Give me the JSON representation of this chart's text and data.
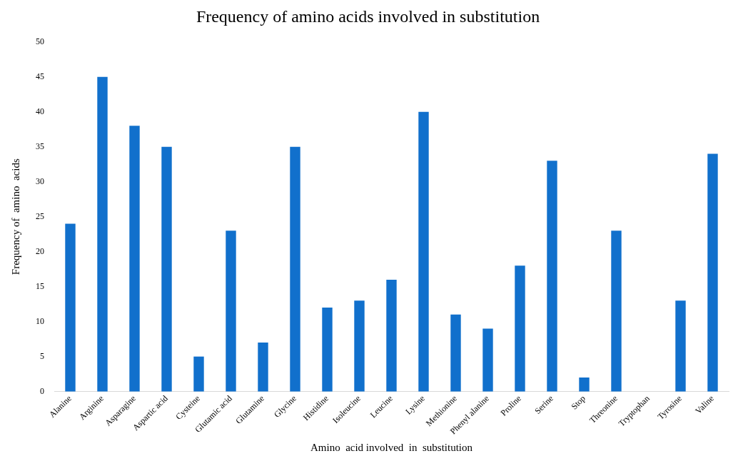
{
  "chart_data": {
    "type": "bar",
    "title": "Frequency of amino acids involved in substitution",
    "xlabel": "Amino  acid involved  in  substitution",
    "ylabel": "Frequency of  amino  acids",
    "categories": [
      "Alanine",
      "Arginine",
      "Asparagine",
      "Aspartic acid",
      "Cysteine",
      "Glutamic acid",
      "Glutamine",
      "Glycine",
      "Histidine",
      "Isoleucine",
      "Leucine",
      "Lysine",
      "Methionine",
      "Phenyl alanine",
      "Proline",
      "Serine",
      "Stop",
      "Threonine",
      "Tryptophan",
      "Tyrosine",
      "Valine"
    ],
    "values": [
      24,
      45,
      38,
      35,
      5,
      23,
      7,
      35,
      12,
      13,
      16,
      40,
      11,
      9,
      18,
      33,
      2,
      23,
      0,
      13,
      34
    ],
    "color": "#1170cc",
    "ylim": [
      0,
      50
    ],
    "yticks": [
      0,
      5,
      10,
      15,
      20,
      25,
      30,
      35,
      40,
      45,
      50
    ],
    "grid": false,
    "legend": false
  }
}
